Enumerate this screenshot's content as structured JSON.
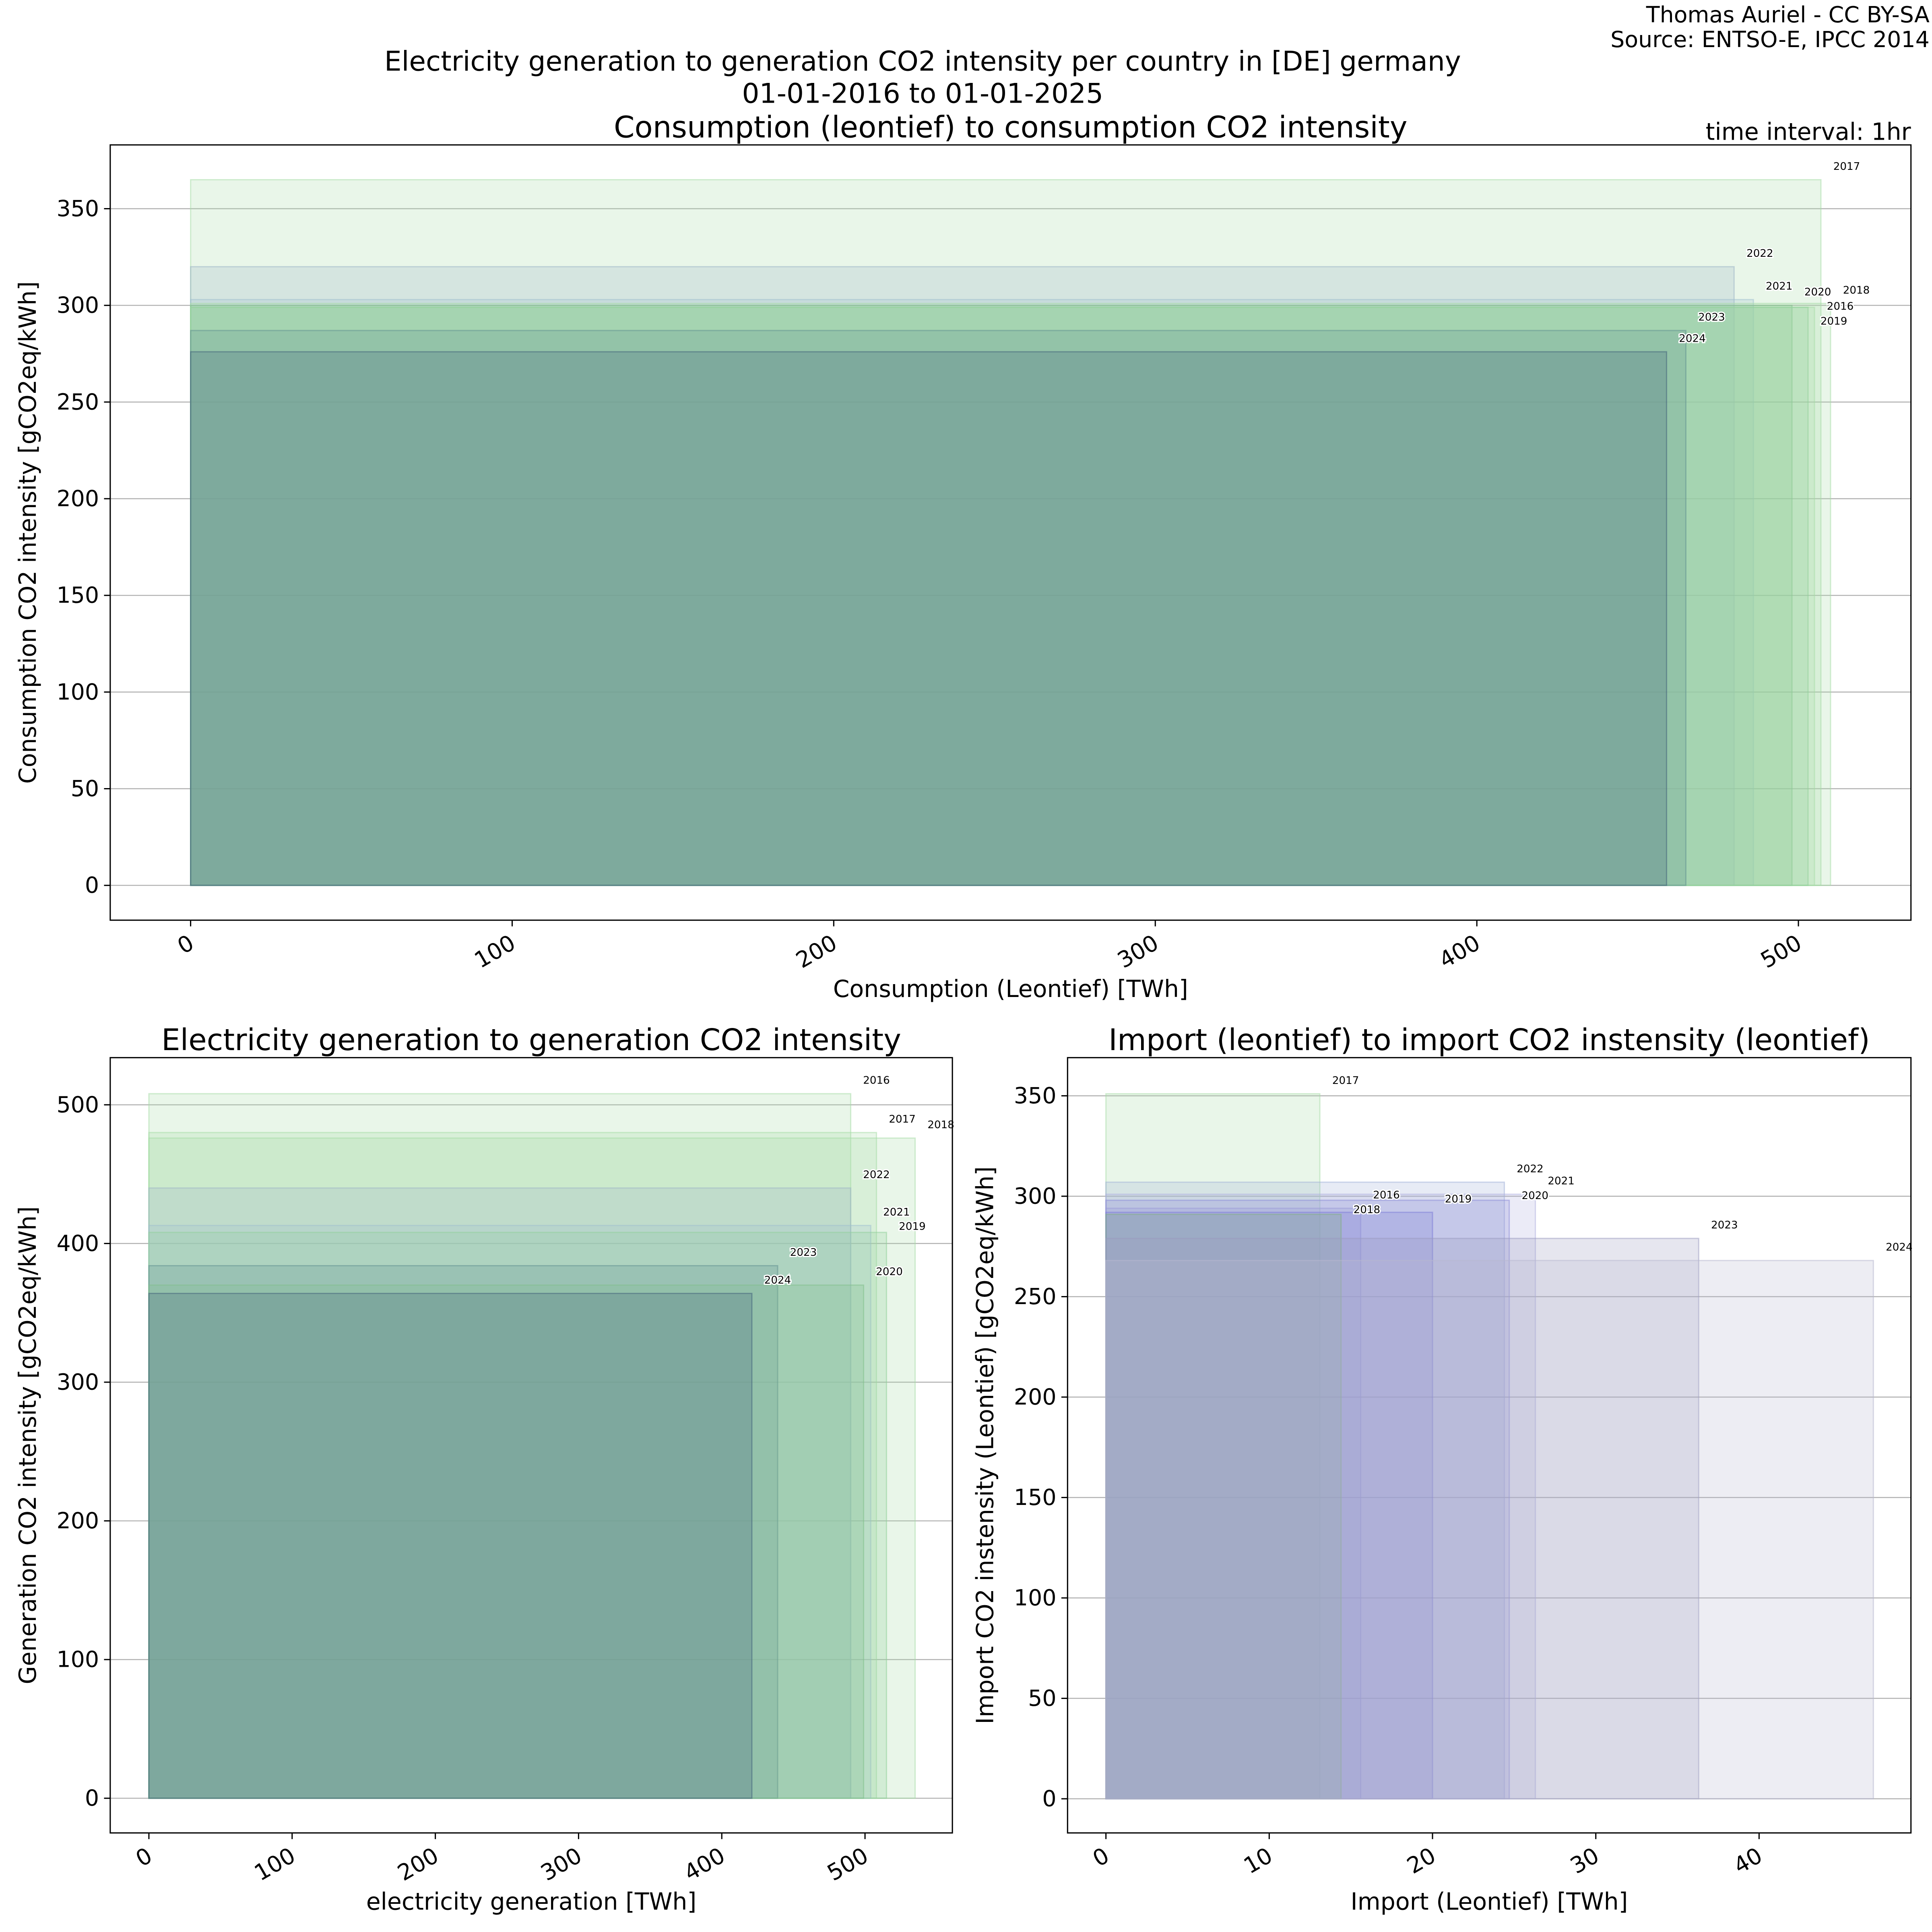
{
  "header": {
    "title_line1": "Electricity generation to generation CO2 intensity per country in [DE] germany",
    "title_line2": "01-01-2016 to 01-01-2025",
    "credit_line1": "Thomas Auriel - CC BY-SA",
    "credit_line2": "Source: ENTSO-E, IPCC 2014",
    "time_interval": "time interval: 1hr"
  },
  "colors": {
    "2016": "#a6dca6",
    "2017": "#a6dca6",
    "2018": "#a6dca6",
    "2019": "#8fcf9a",
    "2020": "#7fc08a",
    "2021": "#9fbfcf",
    "2022": "#9bb4c6",
    "2023": "#5f8f8f",
    "2024": "#3f5f7a"
  },
  "import_colors": {
    "2016": "#9a9ad8",
    "2017": "#a6dca6",
    "2018": "#7fb07f",
    "2019": "#7a7ad8",
    "2020": "#8a8ad8",
    "2021": "#b0b0e0",
    "2022": "#a0b0d8",
    "2023": "#9a9ac0",
    "2024": "#b8b8d0"
  },
  "chart_data": [
    {
      "type": "bar",
      "title": "Consumption (leontief) to consumption CO2 intensity",
      "xlabel": "Consumption (Leontief) [TWh]",
      "ylabel": "Consumption CO2 intensity [gCO2eq/kWh]",
      "xlim": [
        -25,
        535
      ],
      "ylim": [
        -18,
        383
      ],
      "xticks": [
        0,
        100,
        200,
        300,
        400,
        500
      ],
      "yticks": [
        0,
        50,
        100,
        150,
        200,
        250,
        300,
        350
      ],
      "grid": true,
      "bars": [
        {
          "year": "2017",
          "x": 507,
          "y": 365
        },
        {
          "year": "2022",
          "x": 480,
          "y": 320
        },
        {
          "year": "2021",
          "x": 486,
          "y": 303
        },
        {
          "year": "2018",
          "x": 510,
          "y": 301
        },
        {
          "year": "2020",
          "x": 498,
          "y": 300
        },
        {
          "year": "2016",
          "x": 505,
          "y": 299
        },
        {
          "year": "2019",
          "x": 503,
          "y": 299
        },
        {
          "year": "2023",
          "x": 465,
          "y": 287
        },
        {
          "year": "2024",
          "x": 459,
          "y": 276
        }
      ]
    },
    {
      "type": "bar",
      "title": "Electricity generation to generation CO2 intensity",
      "xlabel": "electricity generation [TWh]",
      "ylabel": "Generation CO2 intensity [gCO2eq/kWh]",
      "xlim": [
        -27,
        561
      ],
      "ylim": [
        -25,
        534
      ],
      "xticks": [
        0,
        100,
        200,
        300,
        400,
        500
      ],
      "yticks": [
        0,
        100,
        200,
        300,
        400,
        500
      ],
      "grid": true,
      "bars": [
        {
          "year": "2016",
          "x": 490,
          "y": 508
        },
        {
          "year": "2017",
          "x": 508,
          "y": 480
        },
        {
          "year": "2018",
          "x": 535,
          "y": 476
        },
        {
          "year": "2022",
          "x": 490,
          "y": 440
        },
        {
          "year": "2021",
          "x": 504,
          "y": 413
        },
        {
          "year": "2019",
          "x": 515,
          "y": 408
        },
        {
          "year": "2023",
          "x": 439,
          "y": 384
        },
        {
          "year": "2020",
          "x": 499,
          "y": 370
        },
        {
          "year": "2024",
          "x": 421,
          "y": 364
        }
      ]
    },
    {
      "type": "bar",
      "title": "Import (leontief) to import CO2 instensity (leontief)",
      "xlabel": "Import (Leontief) [TWh]",
      "ylabel": "Import CO2 instensity (Leontief) [gCO2eq/kWh]",
      "xlim": [
        -2.35,
        49.3
      ],
      "ylim": [
        -17,
        369
      ],
      "xticks": [
        0,
        10,
        20,
        30,
        40
      ],
      "yticks": [
        0,
        50,
        100,
        150,
        200,
        250,
        300,
        350
      ],
      "grid": true,
      "bars": [
        {
          "year": "2017",
          "x": 13.1,
          "y": 351
        },
        {
          "year": "2022",
          "x": 24.4,
          "y": 307
        },
        {
          "year": "2021",
          "x": 26.3,
          "y": 301
        },
        {
          "year": "2020",
          "x": 24.7,
          "y": 298
        },
        {
          "year": "2016",
          "x": 15.6,
          "y": 294
        },
        {
          "year": "2019",
          "x": 20.0,
          "y": 292
        },
        {
          "year": "2018",
          "x": 14.4,
          "y": 291
        },
        {
          "year": "2023",
          "x": 36.3,
          "y": 279
        },
        {
          "year": "2024",
          "x": 47.0,
          "y": 268
        }
      ]
    }
  ]
}
